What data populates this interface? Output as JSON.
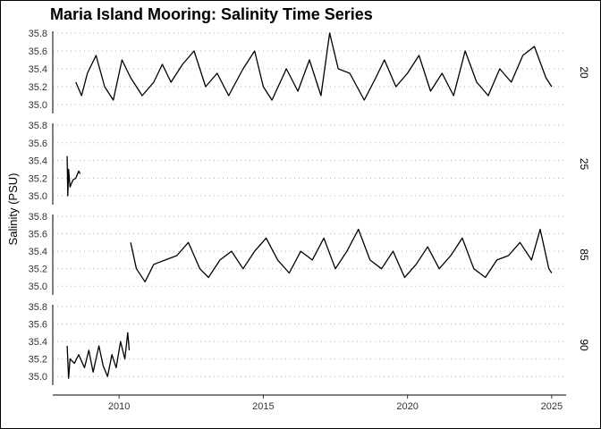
{
  "chart_data": {
    "type": "line",
    "title": "Maria Island Mooring: Salinity Time Series",
    "xlabel": "",
    "ylabel": "Salinity (PSU)",
    "x_ticks": [
      2010,
      2015,
      2020,
      2025
    ],
    "y_ticks": [
      35.0,
      35.2,
      35.4,
      35.6,
      35.8
    ],
    "y_tick_labels": [
      "35.0",
      "35.2",
      "35.4",
      "35.6",
      "35.8"
    ],
    "xlim": [
      2007.7,
      2025.5
    ],
    "ylim": [
      34.9,
      35.82
    ],
    "grid": "horizontal dotted",
    "facet_labels": [
      "20",
      "25",
      "85",
      "90"
    ],
    "series": [
      {
        "name": "20",
        "x": [
          2008.5,
          2008.7,
          2008.9,
          2009.2,
          2009.5,
          2009.8,
          2010.1,
          2010.4,
          2010.8,
          2011.2,
          2011.5,
          2011.8,
          2012.2,
          2012.6,
          2013.0,
          2013.4,
          2013.8,
          2014.3,
          2014.7,
          2015.0,
          2015.3,
          2015.8,
          2016.2,
          2016.6,
          2017.0,
          2017.3,
          2017.6,
          2018.0,
          2018.5,
          2018.9,
          2019.2,
          2019.6,
          2020.0,
          2020.4,
          2020.8,
          2021.2,
          2021.6,
          2022.0,
          2022.4,
          2022.8,
          2023.2,
          2023.6,
          2024.0,
          2024.4,
          2024.8,
          2025.0
        ],
        "y": [
          35.25,
          35.1,
          35.35,
          35.55,
          35.2,
          35.05,
          35.5,
          35.3,
          35.1,
          35.25,
          35.45,
          35.25,
          35.45,
          35.6,
          35.2,
          35.35,
          35.1,
          35.4,
          35.6,
          35.2,
          35.05,
          35.4,
          35.15,
          35.5,
          35.1,
          35.8,
          35.4,
          35.35,
          35.05,
          35.3,
          35.5,
          35.2,
          35.35,
          35.55,
          35.15,
          35.35,
          35.1,
          35.6,
          35.25,
          35.1,
          35.4,
          35.25,
          35.55,
          35.65,
          35.3,
          35.2
        ]
      },
      {
        "name": "25",
        "x": [
          2008.2,
          2008.22,
          2008.25,
          2008.3,
          2008.4,
          2008.5,
          2008.6,
          2008.65
        ],
        "y": [
          35.45,
          35.0,
          35.3,
          35.1,
          35.18,
          35.2,
          35.28,
          35.25
        ]
      },
      {
        "name": "85",
        "x": [
          2010.4,
          2010.6,
          2010.9,
          2011.2,
          2011.6,
          2012.0,
          2012.4,
          2012.8,
          2013.1,
          2013.5,
          2013.9,
          2014.3,
          2014.7,
          2015.1,
          2015.5,
          2015.9,
          2016.3,
          2016.7,
          2017.1,
          2017.5,
          2017.9,
          2018.3,
          2018.7,
          2019.1,
          2019.5,
          2019.9,
          2020.3,
          2020.7,
          2021.1,
          2021.5,
          2021.9,
          2022.3,
          2022.7,
          2023.1,
          2023.5,
          2023.9,
          2024.3,
          2024.6,
          2024.9,
          2025.0
        ],
        "y": [
          35.5,
          35.2,
          35.05,
          35.25,
          35.3,
          35.35,
          35.5,
          35.2,
          35.1,
          35.3,
          35.4,
          35.2,
          35.4,
          35.55,
          35.3,
          35.15,
          35.4,
          35.3,
          35.55,
          35.2,
          35.4,
          35.65,
          35.3,
          35.2,
          35.4,
          35.1,
          35.25,
          35.45,
          35.2,
          35.35,
          35.55,
          35.2,
          35.1,
          35.3,
          35.35,
          35.5,
          35.3,
          35.65,
          35.2,
          35.15
        ]
      },
      {
        "name": "90",
        "x": [
          2008.2,
          2008.25,
          2008.3,
          2008.45,
          2008.6,
          2008.8,
          2008.95,
          2009.1,
          2009.3,
          2009.45,
          2009.6,
          2009.75,
          2009.9,
          2010.05,
          2010.2,
          2010.3,
          2010.35
        ],
        "y": [
          35.35,
          34.98,
          35.2,
          35.15,
          35.25,
          35.1,
          35.3,
          35.05,
          35.35,
          35.12,
          35.0,
          35.25,
          35.1,
          35.4,
          35.2,
          35.5,
          35.3
        ]
      }
    ]
  }
}
